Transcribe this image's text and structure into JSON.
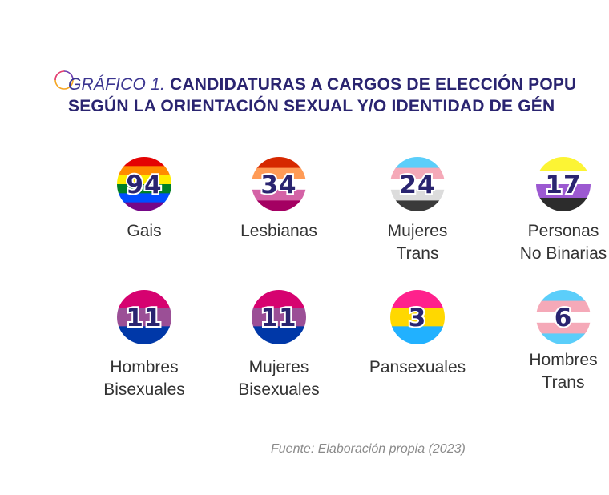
{
  "title": {
    "prefix": "GRÁFICO 1.",
    "main": "CANDIDATURAS A CARGOS DE ELECCIÓN POPU",
    "line2": "SEGÚN LA ORIENTACIÓN SEXUAL Y/O IDENTIDAD DE GÉN"
  },
  "source": "Fuente: Elaboración propia (2023)",
  "chart_data": {
    "type": "pictogram",
    "categories": [
      {
        "label": [
          "Gais"
        ],
        "value": 94,
        "flag": [
          "#e40303",
          "#ff8c00",
          "#ffed00",
          "#008026",
          "#004dff",
          "#750787"
        ]
      },
      {
        "label": [
          "Lesbianas"
        ],
        "value": 34,
        "flag": [
          "#d62800",
          "#ff9b56",
          "#ffffff",
          "#d462a6",
          "#a40062"
        ]
      },
      {
        "label": [
          "Mujeres",
          "Trans"
        ],
        "value": 24,
        "flag": [
          "#5bcefa",
          "#f5a9b8",
          "#ffffff",
          "#dcdcdc",
          "#3a3a3a"
        ]
      },
      {
        "label": [
          "Personas",
          "No Binarias"
        ],
        "value": 17,
        "flag": [
          "#fcf434",
          "#ffffff",
          "#9c59d1",
          "#2c2c2c"
        ]
      },
      {
        "label": [
          "Hombres",
          "Bisexuales"
        ],
        "value": 11,
        "flag": [
          "#d60270",
          "#9b4f96",
          "#0038a8"
        ]
      },
      {
        "label": [
          "Mujeres",
          "Bisexuales"
        ],
        "value": 11,
        "flag": [
          "#d60270",
          "#9b4f96",
          "#0038a8"
        ]
      },
      {
        "label": [
          "Pansexuales"
        ],
        "value": 3,
        "flag": [
          "#ff218c",
          "#ffd800",
          "#21b1ff"
        ]
      },
      {
        "label": [
          "Hombres",
          "Trans"
        ],
        "value": 6,
        "flag": [
          "#5bcefa",
          "#f5a9b8",
          "#ffffff",
          "#f5a9b8",
          "#5bcefa"
        ]
      }
    ]
  }
}
